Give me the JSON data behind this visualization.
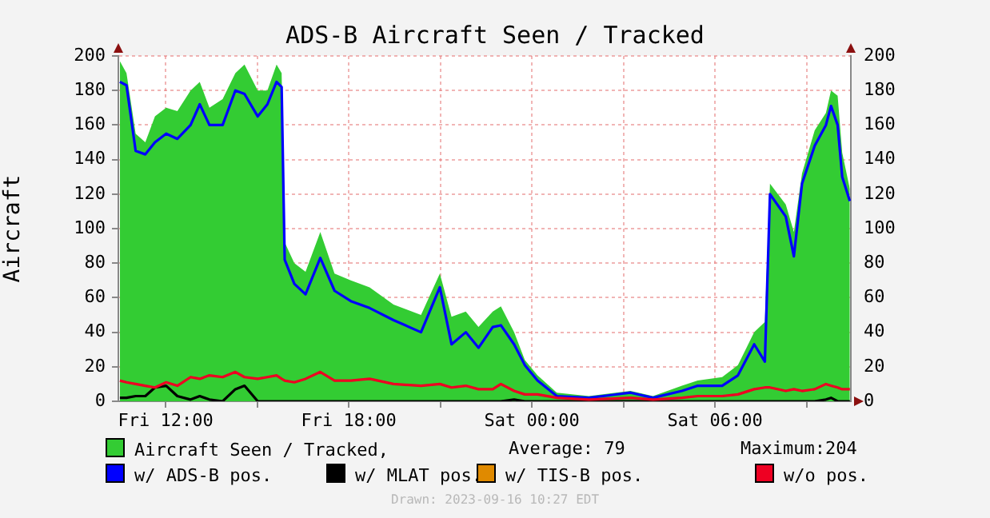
{
  "chart_data": {
    "type": "area",
    "title": "ADS-B Aircraft Seen / Tracked",
    "ylabel": "Aircraft",
    "annotations": [
      "Average: 79",
      "Maximum:204",
      "Drawn: 2023-09-16 10:27 EDT"
    ],
    "x": [
      "2023-09-15T10:30",
      "2023-09-15T10:43",
      "2023-09-15T11:01",
      "2023-09-15T11:20",
      "2023-09-15T11:39",
      "2023-09-15T12:01",
      "2023-09-15T12:23",
      "2023-09-15T12:49",
      "2023-09-15T13:07",
      "2023-09-15T13:26",
      "2023-09-15T13:52",
      "2023-09-15T14:17",
      "2023-09-15T14:35",
      "2023-09-15T15:01",
      "2023-09-15T15:20",
      "2023-09-15T15:38",
      "2023-09-15T15:48",
      "2023-09-15T15:54",
      "2023-09-15T16:13",
      "2023-09-15T16:35",
      "2023-09-15T17:04",
      "2023-09-15T17:32",
      "2023-09-15T18:04",
      "2023-09-15T18:41",
      "2023-09-15T19:28",
      "2023-09-15T20:22",
      "2023-09-15T20:59",
      "2023-09-15T21:22",
      "2023-09-15T21:50",
      "2023-09-15T22:15",
      "2023-09-15T22:43",
      "2023-09-15T22:59",
      "2023-09-15T23:25",
      "2023-09-15T23:46",
      "2023-09-16T00:11",
      "2023-09-16T00:49",
      "2023-09-16T01:52",
      "2023-09-16T03:14",
      "2023-09-16T03:58",
      "2023-09-16T04:55",
      "2023-09-16T05:26",
      "2023-09-16T06:14",
      "2023-09-16T06:45",
      "2023-09-16T07:17",
      "2023-09-16T07:38",
      "2023-09-16T07:48",
      "2023-09-16T08:19",
      "2023-09-16T08:35",
      "2023-09-16T08:51",
      "2023-09-16T09:16",
      "2023-09-16T09:38",
      "2023-09-16T09:48",
      "2023-09-16T10:01",
      "2023-09-16T10:10",
      "2023-09-16T10:25"
    ],
    "series": [
      {
        "name": "Aircraft Seen / Tracked,",
        "color": "#33cc33",
        "values": [
          197,
          190,
          155,
          150,
          165,
          170,
          168,
          180,
          185,
          170,
          175,
          190,
          195,
          180,
          180,
          195,
          190,
          92,
          80,
          75,
          98,
          74,
          70,
          66,
          56,
          50,
          74,
          49,
          52,
          43,
          52,
          55,
          40,
          24,
          15,
          5,
          3,
          6,
          3,
          9,
          12,
          14,
          21,
          40,
          46,
          126,
          114,
          98,
          132,
          157,
          167,
          180,
          177,
          144,
          123
        ]
      },
      {
        "name": "w/ ADS-B pos.",
        "type": "line",
        "color": "#0000ff",
        "values": [
          185,
          183,
          145,
          143,
          150,
          155,
          152,
          160,
          172,
          160,
          160,
          180,
          178,
          165,
          172,
          185,
          182,
          82,
          68,
          62,
          83,
          64,
          58,
          54,
          47,
          40,
          66,
          33,
          40,
          31,
          43,
          44,
          33,
          21,
          12,
          3,
          2,
          5,
          2,
          6,
          9,
          9,
          15,
          33,
          23,
          120,
          107,
          84,
          126,
          148,
          160,
          171,
          160,
          130,
          116
        ]
      },
      {
        "name": "w/ MLAT pos.",
        "type": "line",
        "color": "#000000",
        "values": [
          2,
          2,
          3,
          3,
          8,
          9,
          3,
          1,
          3,
          1,
          0,
          7,
          9,
          0,
          0,
          0,
          0,
          0,
          0,
          0,
          0,
          0,
          0,
          0,
          0,
          0,
          0,
          0,
          0,
          0,
          0,
          0,
          1,
          0,
          0,
          0,
          0,
          0,
          0,
          0,
          0,
          0,
          0,
          0,
          0,
          0,
          0,
          0,
          0,
          0,
          1,
          2,
          0,
          0,
          0
        ]
      },
      {
        "name": "w/ TIS-B pos.",
        "type": "line",
        "color": "#e08a00",
        "values": [
          null,
          null,
          null,
          null,
          null,
          null,
          null,
          null,
          null,
          null,
          null,
          null,
          null,
          null,
          null,
          null,
          null,
          null,
          null,
          null,
          null,
          null,
          null,
          null,
          null,
          null,
          null,
          null,
          null,
          null,
          null,
          null,
          null,
          null,
          null,
          null,
          null,
          null,
          null,
          null,
          null,
          null,
          null,
          null,
          null,
          null,
          null,
          null,
          null,
          null,
          null,
          null,
          null,
          null,
          null
        ]
      },
      {
        "name": "w/o pos.",
        "type": "line",
        "color": "#ee0022",
        "values": [
          12,
          11,
          10,
          9,
          8,
          11,
          9,
          14,
          13,
          15,
          14,
          17,
          14,
          13,
          14,
          15,
          13,
          12,
          11,
          13,
          17,
          12,
          12,
          13,
          10,
          9,
          10,
          8,
          9,
          7,
          7,
          10,
          6,
          4,
          4,
          2,
          1,
          2,
          1,
          2,
          3,
          3,
          4,
          7,
          8,
          8,
          6,
          7,
          6,
          7,
          10,
          9,
          8,
          7,
          7
        ]
      }
    ],
    "xlim": [
      "2023-09-15T10:27",
      "2023-09-16T10:27"
    ],
    "xticks": [
      {
        "value": "2023-09-15T12:00",
        "label": "Fri 12:00"
      },
      {
        "value": "2023-09-15T15:00",
        "label": null
      },
      {
        "value": "2023-09-15T18:00",
        "label": "Fri 18:00"
      },
      {
        "value": "2023-09-15T21:00",
        "label": null
      },
      {
        "value": "2023-09-16T00:00",
        "label": "Sat 00:00"
      },
      {
        "value": "2023-09-16T03:00",
        "label": null
      },
      {
        "value": "2023-09-16T06:00",
        "label": "Sat 06:00"
      },
      {
        "value": "2023-09-16T09:00",
        "label": null
      }
    ],
    "ylim": [
      0,
      200
    ],
    "yticks": [
      0,
      20,
      40,
      60,
      80,
      100,
      120,
      140,
      160,
      180,
      200
    ],
    "y2lim": [
      0,
      200
    ],
    "y2ticks": [
      0,
      20,
      40,
      60,
      80,
      100,
      120,
      140,
      160,
      180,
      200
    ],
    "grid": true,
    "legend": "bottom",
    "marker": "none"
  }
}
